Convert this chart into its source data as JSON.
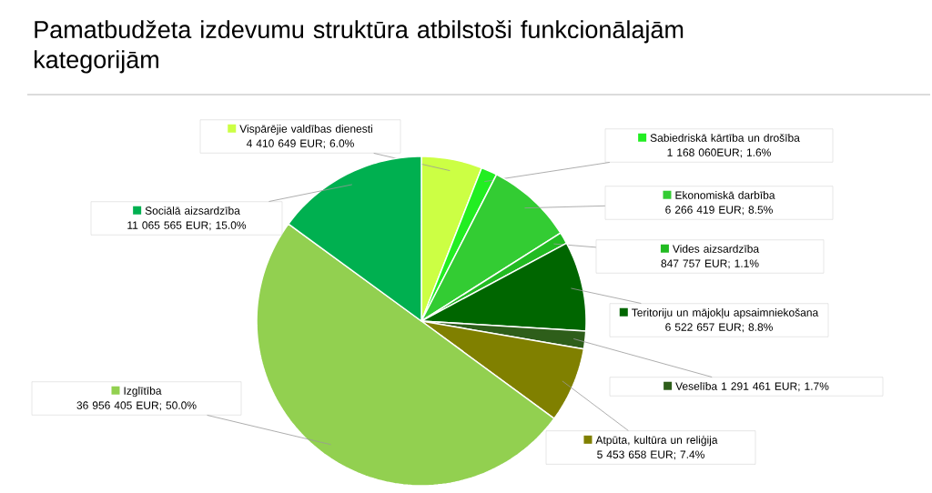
{
  "chart_data": {
    "type": "pie",
    "title": "Pamatbudžeta izdevumu struktūra atbilstoši funkcionālajām kategorijām",
    "categories": [
      "Vispārējie valdības dienesti",
      "Sabiedriskā kārtība un drošība",
      "Ekonomiskā darbība",
      "Vides aizsardzība",
      "Teritoriju un mājokļu apsaimniekošana",
      "Veselība",
      "Atpūta, kultūra un reliģija",
      "Izglītība",
      "Sociālā aizsardzība"
    ],
    "values": [
      4410649,
      1168060,
      6266419,
      847757,
      6522657,
      1291461,
      5453658,
      36956405,
      11065565
    ],
    "value_labels": [
      "4 410 649 EUR; 6.0%",
      "1 168 060EUR; 1.6%",
      "6 266 419 EUR; 8.5%",
      "847 757 EUR; 1.1%",
      "6 522 657 EUR; 8.8%",
      "1 291 461 EUR; 1.7%",
      "5 453 658 EUR; 7.4%",
      "36 956 405 EUR; 50.0%",
      "11 065 565 EUR; 15.0%"
    ],
    "legend": "right",
    "colors": [
      "#ccff44",
      "#22ee22",
      "#33cc33",
      "#22bb22",
      "#006600",
      "#2e5e1a",
      "#808000",
      "#92d050",
      "#00b050"
    ]
  }
}
